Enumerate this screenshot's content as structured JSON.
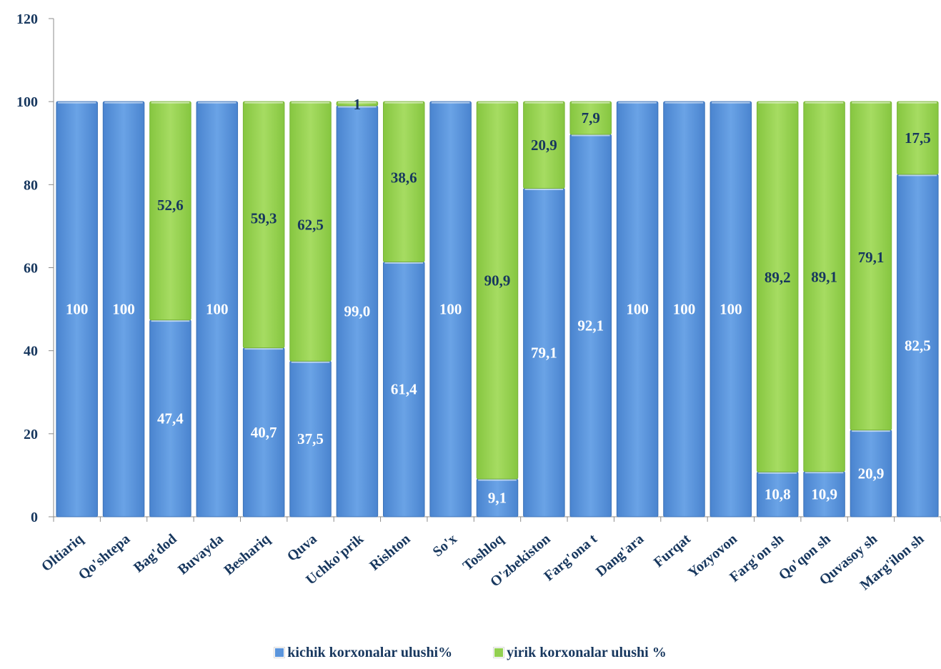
{
  "chart_data": {
    "type": "bar",
    "stacked": true,
    "categories": [
      "Oltiariq",
      "Qo'shtepa",
      "Bag'dod",
      "Buvayda",
      "Beshariq",
      "Quva",
      "Uchko'prik",
      "Rishton",
      "So'x",
      "Toshloq",
      "O'zbekiston",
      "Farg'ona t",
      "Dang'ara",
      "Furqat",
      "Yozyovon",
      "Farg'on sh",
      "Qo'qon sh",
      "Quvasoy sh",
      "Marg'ilon sh"
    ],
    "series": [
      {
        "name": "kichik korxonalar ulushi%",
        "color": "#5b95dc",
        "values": [
          100,
          100,
          47.4,
          100,
          40.7,
          37.5,
          99.0,
          61.4,
          100,
          9.1,
          79.1,
          92.1,
          100,
          100,
          100,
          10.8,
          10.9,
          20.9,
          82.5
        ],
        "labels": [
          "100",
          "100",
          "47,4",
          "100",
          "40,7",
          "37,5",
          "99,0",
          "61,4",
          "100",
          "9,1",
          "79,1",
          "92,1",
          "100",
          "100",
          "100",
          "10,8",
          "10,9",
          "20,9",
          "82,5"
        ]
      },
      {
        "name": "yirik korxonalar ulushi %",
        "color": "#92d050",
        "values": [
          0,
          0,
          52.6,
          0,
          59.3,
          62.5,
          1,
          38.6,
          0,
          90.9,
          20.9,
          7.9,
          0,
          0,
          0,
          89.2,
          89.1,
          79.1,
          17.5
        ],
        "labels": [
          "",
          "",
          "52,6",
          "",
          "59,3",
          "62,5",
          "1",
          "38,6",
          "",
          "90,9",
          "20,9",
          "7,9",
          "",
          "",
          "",
          "89,2",
          "89,1",
          "79,1",
          "17,5"
        ]
      }
    ],
    "y_ticks": [
      "0",
      "20",
      "40",
      "60",
      "80",
      "100",
      "120"
    ],
    "ylim": [
      0,
      120
    ],
    "grid": false,
    "legend_position": "bottom",
    "label_colors": {
      "blue_series": "#ffffff",
      "green_series": "#17375e",
      "axis": "#17375e"
    }
  },
  "legend": {
    "items": [
      {
        "label": "kichik korxonalar ulushi%",
        "color": "#5b95dc"
      },
      {
        "label": "yirik korxonalar ulushi %",
        "color": "#92d050"
      }
    ]
  }
}
